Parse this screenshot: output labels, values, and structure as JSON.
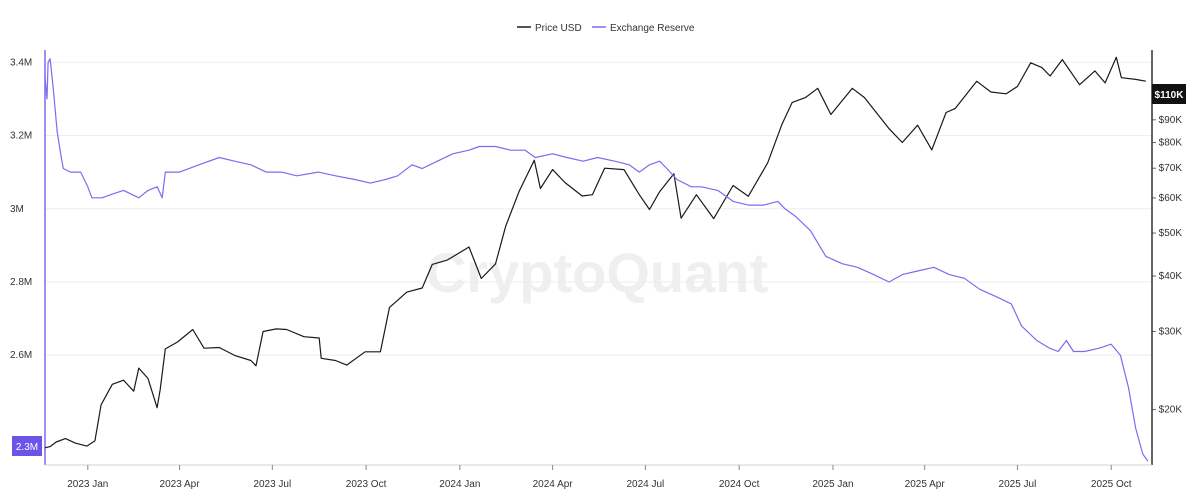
{
  "legend": {
    "price_label": "Price USD",
    "reserve_label": "Exchange Reserve"
  },
  "watermark": "CryptoQuant",
  "badges": {
    "left_current": "2.3M",
    "right_current": "$110K"
  },
  "colors": {
    "price": "#1a1a1a",
    "reserve": "#7b6cf0",
    "badge_left_bg": "#6a55e8",
    "badge_right_bg": "#111111",
    "grid": "#eeeeee",
    "axis_text": "#333333"
  },
  "chart_data": {
    "type": "line",
    "title": "",
    "xlabel": "",
    "ylabel_left": "",
    "ylabel_right": "",
    "x_ticks": [
      "2023 Jan",
      "2023 Apr",
      "2023 Jul",
      "2023 Oct",
      "2024 Jan",
      "2024 Apr",
      "2024 Jul",
      "2024 Oct",
      "2025 Jan",
      "2025 Apr",
      "2025 Jul",
      "2025 Oct"
    ],
    "x_tick_dates": [
      "2023-01-01",
      "2023-04-01",
      "2023-07-01",
      "2023-10-01",
      "2024-01-01",
      "2024-04-01",
      "2024-07-01",
      "2024-10-01",
      "2025-01-01",
      "2025-04-01",
      "2025-07-01",
      "2025-10-01"
    ],
    "x_range": [
      "2022-11-20",
      "2025-11-10"
    ],
    "left_axis": {
      "ticks": [
        2600000,
        2800000,
        3000000,
        3200000,
        3400000
      ],
      "tick_labels": [
        "2.6M",
        "2.8M",
        "3M",
        "3.2M",
        "3.4M"
      ],
      "ylim": [
        2300000,
        3420000
      ]
    },
    "right_axis": {
      "scale": "log",
      "ticks": [
        20000,
        30000,
        40000,
        50000,
        60000,
        70000,
        80000,
        90000,
        100000
      ],
      "tick_labels": [
        "$20K",
        "$30K",
        "$40K",
        "$50K",
        "$60K",
        "$70K",
        "$80K",
        "$90K",
        "$100K"
      ],
      "ylim": [
        15000,
        126000
      ]
    },
    "grid": true,
    "legend_position": "top-center",
    "series": [
      {
        "name": "Price USD",
        "axis": "right",
        "points": [
          [
            "2022-11-20",
            16400
          ],
          [
            "2022-11-25",
            16500
          ],
          [
            "2022-12-01",
            16900
          ],
          [
            "2022-12-10",
            17200
          ],
          [
            "2022-12-20",
            16800
          ],
          [
            "2022-12-31",
            16550
          ],
          [
            "2023-01-08",
            17000
          ],
          [
            "2023-01-14",
            20500
          ],
          [
            "2023-01-25",
            22800
          ],
          [
            "2023-02-05",
            23300
          ],
          [
            "2023-02-15",
            22000
          ],
          [
            "2023-02-20",
            24800
          ],
          [
            "2023-03-01",
            23500
          ],
          [
            "2023-03-10",
            20200
          ],
          [
            "2023-03-13",
            22200
          ],
          [
            "2023-03-18",
            27400
          ],
          [
            "2023-03-30",
            28400
          ],
          [
            "2023-04-14",
            30300
          ],
          [
            "2023-04-25",
            27500
          ],
          [
            "2023-05-10",
            27600
          ],
          [
            "2023-05-25",
            26500
          ],
          [
            "2023-06-10",
            25800
          ],
          [
            "2023-06-15",
            25100
          ],
          [
            "2023-06-22",
            30000
          ],
          [
            "2023-07-05",
            30400
          ],
          [
            "2023-07-15",
            30300
          ],
          [
            "2023-08-01",
            29200
          ],
          [
            "2023-08-16",
            29000
          ],
          [
            "2023-08-18",
            26100
          ],
          [
            "2023-09-01",
            25800
          ],
          [
            "2023-09-12",
            25200
          ],
          [
            "2023-09-30",
            27000
          ],
          [
            "2023-10-15",
            27000
          ],
          [
            "2023-10-24",
            34000
          ],
          [
            "2023-11-10",
            36800
          ],
          [
            "2023-11-25",
            37600
          ],
          [
            "2023-12-05",
            42500
          ],
          [
            "2023-12-20",
            43500
          ],
          [
            "2024-01-10",
            46500
          ],
          [
            "2024-01-22",
            39500
          ],
          [
            "2024-02-05",
            42600
          ],
          [
            "2024-02-15",
            51800
          ],
          [
            "2024-02-28",
            62000
          ],
          [
            "2024-03-14",
            73000
          ],
          [
            "2024-03-20",
            63000
          ],
          [
            "2024-04-01",
            69500
          ],
          [
            "2024-04-13",
            65000
          ],
          [
            "2024-04-30",
            60600
          ],
          [
            "2024-05-10",
            61000
          ],
          [
            "2024-05-22",
            70000
          ],
          [
            "2024-06-10",
            69500
          ],
          [
            "2024-06-25",
            61000
          ],
          [
            "2024-07-05",
            56500
          ],
          [
            "2024-07-15",
            62000
          ],
          [
            "2024-07-29",
            68000
          ],
          [
            "2024-08-05",
            54000
          ],
          [
            "2024-08-20",
            61000
          ],
          [
            "2024-09-06",
            53900
          ],
          [
            "2024-09-25",
            64000
          ],
          [
            "2024-10-10",
            60500
          ],
          [
            "2024-10-29",
            72000
          ],
          [
            "2024-11-12",
            88000
          ],
          [
            "2024-11-22",
            98500
          ],
          [
            "2024-12-05",
            101000
          ],
          [
            "2024-12-17",
            106000
          ],
          [
            "2024-12-30",
            92500
          ],
          [
            "2025-01-20",
            106000
          ],
          [
            "2025-02-01",
            101000
          ],
          [
            "2025-02-25",
            86000
          ],
          [
            "2025-03-10",
            80000
          ],
          [
            "2025-03-25",
            87500
          ],
          [
            "2025-04-08",
            77000
          ],
          [
            "2025-04-22",
            93500
          ],
          [
            "2025-05-01",
            95500
          ],
          [
            "2025-05-22",
            110000
          ],
          [
            "2025-06-05",
            104000
          ],
          [
            "2025-06-20",
            103000
          ],
          [
            "2025-07-01",
            107000
          ],
          [
            "2025-07-14",
            121000
          ],
          [
            "2025-07-25",
            118000
          ],
          [
            "2025-08-02",
            113000
          ],
          [
            "2025-08-14",
            123000
          ],
          [
            "2025-08-31",
            108000
          ],
          [
            "2025-09-15",
            116000
          ],
          [
            "2025-09-25",
            109000
          ],
          [
            "2025-10-06",
            124500
          ],
          [
            "2025-10-11",
            112000
          ],
          [
            "2025-10-25",
            111000
          ],
          [
            "2025-11-04",
            110000
          ]
        ]
      },
      {
        "name": "Exchange Reserve",
        "axis": "left",
        "points": [
          [
            "2022-11-20",
            3360000
          ],
          [
            "2022-11-22",
            3300000
          ],
          [
            "2022-11-23",
            3400000
          ],
          [
            "2022-11-25",
            3410000
          ],
          [
            "2022-11-28",
            3330000
          ],
          [
            "2022-12-02",
            3210000
          ],
          [
            "2022-12-06",
            3140000
          ],
          [
            "2022-12-08",
            3110000
          ],
          [
            "2022-12-15",
            3100000
          ],
          [
            "2022-12-25",
            3100000
          ],
          [
            "2023-01-01",
            3060000
          ],
          [
            "2023-01-05",
            3030000
          ],
          [
            "2023-01-15",
            3030000
          ],
          [
            "2023-01-25",
            3040000
          ],
          [
            "2023-02-05",
            3050000
          ],
          [
            "2023-02-20",
            3030000
          ],
          [
            "2023-03-01",
            3050000
          ],
          [
            "2023-03-10",
            3060000
          ],
          [
            "2023-03-15",
            3030000
          ],
          [
            "2023-03-18",
            3100000
          ],
          [
            "2023-04-01",
            3100000
          ],
          [
            "2023-04-20",
            3120000
          ],
          [
            "2023-05-10",
            3140000
          ],
          [
            "2023-05-25",
            3130000
          ],
          [
            "2023-06-10",
            3120000
          ],
          [
            "2023-06-25",
            3100000
          ],
          [
            "2023-07-10",
            3100000
          ],
          [
            "2023-07-25",
            3090000
          ],
          [
            "2023-08-15",
            3100000
          ],
          [
            "2023-09-01",
            3090000
          ],
          [
            "2023-09-20",
            3080000
          ],
          [
            "2023-10-05",
            3070000
          ],
          [
            "2023-10-20",
            3080000
          ],
          [
            "2023-11-01",
            3090000
          ],
          [
            "2023-11-15",
            3120000
          ],
          [
            "2023-11-25",
            3110000
          ],
          [
            "2023-12-10",
            3130000
          ],
          [
            "2023-12-25",
            3150000
          ],
          [
            "2024-01-10",
            3160000
          ],
          [
            "2024-01-20",
            3170000
          ],
          [
            "2024-02-05",
            3170000
          ],
          [
            "2024-02-20",
            3160000
          ],
          [
            "2024-03-05",
            3160000
          ],
          [
            "2024-03-15",
            3140000
          ],
          [
            "2024-04-01",
            3150000
          ],
          [
            "2024-04-15",
            3140000
          ],
          [
            "2024-05-01",
            3130000
          ],
          [
            "2024-05-15",
            3140000
          ],
          [
            "2024-06-01",
            3130000
          ],
          [
            "2024-06-15",
            3120000
          ],
          [
            "2024-06-25",
            3100000
          ],
          [
            "2024-07-05",
            3120000
          ],
          [
            "2024-07-15",
            3130000
          ],
          [
            "2024-07-22",
            3110000
          ],
          [
            "2024-08-01",
            3080000
          ],
          [
            "2024-08-15",
            3060000
          ],
          [
            "2024-08-25",
            3060000
          ],
          [
            "2024-09-10",
            3050000
          ],
          [
            "2024-09-25",
            3020000
          ],
          [
            "2024-10-10",
            3010000
          ],
          [
            "2024-10-25",
            3010000
          ],
          [
            "2024-11-08",
            3020000
          ],
          [
            "2024-11-15",
            3000000
          ],
          [
            "2024-11-25",
            2980000
          ],
          [
            "2024-12-10",
            2940000
          ],
          [
            "2024-12-25",
            2870000
          ],
          [
            "2025-01-10",
            2850000
          ],
          [
            "2025-01-25",
            2840000
          ],
          [
            "2025-02-10",
            2820000
          ],
          [
            "2025-02-25",
            2800000
          ],
          [
            "2025-03-10",
            2820000
          ],
          [
            "2025-03-25",
            2830000
          ],
          [
            "2025-04-10",
            2840000
          ],
          [
            "2025-04-25",
            2820000
          ],
          [
            "2025-05-10",
            2810000
          ],
          [
            "2025-05-25",
            2780000
          ],
          [
            "2025-06-10",
            2760000
          ],
          [
            "2025-06-25",
            2740000
          ],
          [
            "2025-07-05",
            2680000
          ],
          [
            "2025-07-20",
            2640000
          ],
          [
            "2025-08-01",
            2620000
          ],
          [
            "2025-08-10",
            2610000
          ],
          [
            "2025-08-18",
            2640000
          ],
          [
            "2025-08-25",
            2610000
          ],
          [
            "2025-09-05",
            2610000
          ],
          [
            "2025-09-20",
            2620000
          ],
          [
            "2025-10-01",
            2630000
          ],
          [
            "2025-10-10",
            2600000
          ],
          [
            "2025-10-18",
            2510000
          ],
          [
            "2025-10-25",
            2400000
          ],
          [
            "2025-11-01",
            2330000
          ],
          [
            "2025-11-06",
            2310000
          ]
        ]
      }
    ]
  }
}
